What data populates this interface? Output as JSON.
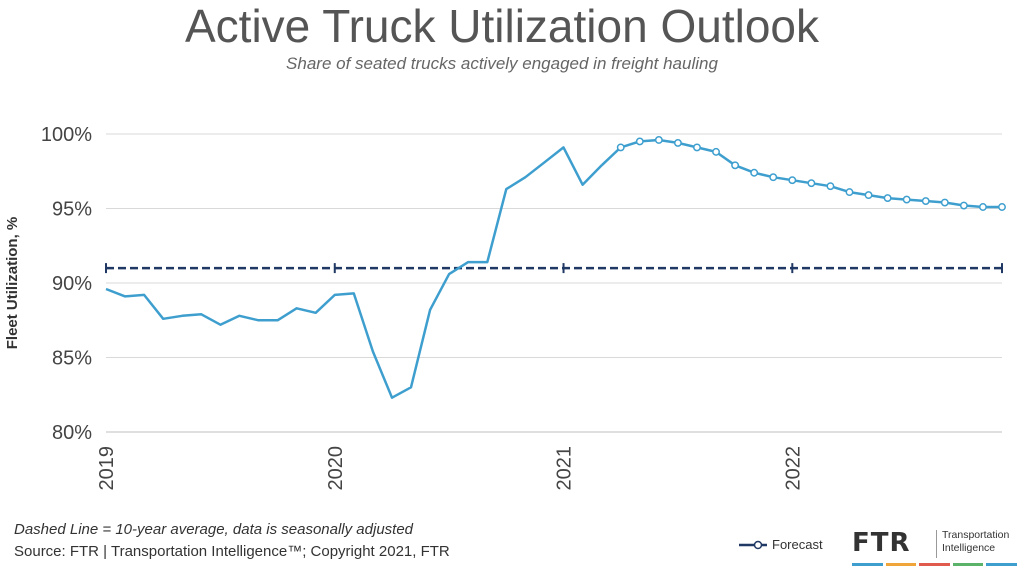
{
  "header": {
    "title": "Active Truck Utilization Outlook",
    "subtitle": "Share of seated trucks actively engaged in freight hauling"
  },
  "footer": {
    "note": "Dashed Line = 10-year average, data is seasonally adjusted",
    "source": "Source: FTR | Transportation Intelligence™; Copyright 2021, FTR"
  },
  "legend": {
    "forecast_label": "Forecast"
  },
  "logo": {
    "mark": "FTR",
    "line1": "Transportation",
    "line2": "Intelligence"
  },
  "colors": {
    "series": "#3e9fcf",
    "average": "#1f3864",
    "grid": "#d9d9d9",
    "stripe": [
      "#3e9fcf",
      "#f0a53a",
      "#e05a4e",
      "#5bb36a",
      "#3e9fcf"
    ]
  },
  "chart_data": {
    "type": "line",
    "ylabel": "Fleet Utilization, %",
    "ylim": [
      80,
      100
    ],
    "yticks": [
      80,
      85,
      90,
      95,
      100
    ],
    "ytick_labels": [
      "80%",
      "85%",
      "90%",
      "95%",
      "100%"
    ],
    "xlim": [
      "2019-01",
      "2022-12"
    ],
    "xticks": [
      "2019-01",
      "2020-01",
      "2021-01",
      "2022-01"
    ],
    "xtick_labels": [
      "2019",
      "2020",
      "2021",
      "2022"
    ],
    "grid": "horizontal",
    "legend_position": "bottom-right",
    "series": [
      {
        "x": [
          "2019-01",
          "2019-02",
          "2019-03",
          "2019-04",
          "2019-05",
          "2019-06",
          "2019-07",
          "2019-08",
          "2019-09",
          "2019-10",
          "2019-11",
          "2019-12",
          "2020-01",
          "2020-02",
          "2020-03",
          "2020-04",
          "2020-05",
          "2020-06",
          "2020-07",
          "2020-08",
          "2020-09",
          "2020-10",
          "2020-11",
          "2020-12",
          "2021-01",
          "2021-02",
          "2021-03"
        ],
        "y": [
          89.6,
          89.1,
          89.2,
          87.6,
          87.8,
          87.9,
          87.2,
          87.8,
          87.5,
          87.5,
          88.3,
          88.0,
          89.2,
          89.3,
          85.4,
          82.3,
          83.0,
          88.2,
          90.6,
          91.4,
          91.4,
          96.3,
          97.1,
          98.1,
          99.1,
          96.6,
          97.9
        ]
      },
      {
        "name": "Forecast",
        "marker": "open-circle",
        "x": [
          "2021-03",
          "2021-04",
          "2021-05",
          "2021-06",
          "2021-07",
          "2021-08",
          "2021-09",
          "2021-10",
          "2021-11",
          "2021-12",
          "2022-01",
          "2022-02",
          "2022-03",
          "2022-04",
          "2022-05",
          "2022-06",
          "2022-07",
          "2022-08",
          "2022-09",
          "2022-10",
          "2022-11",
          "2022-12"
        ],
        "y": [
          97.9,
          99.1,
          99.5,
          99.6,
          99.4,
          99.1,
          98.8,
          97.9,
          97.4,
          97.1,
          96.9,
          96.7,
          96.5,
          96.1,
          95.9,
          95.7,
          95.6,
          95.5,
          95.4,
          95.2,
          95.1,
          95.1
        ]
      }
    ],
    "reference_line": {
      "y": 91.0,
      "style": "dashed"
    }
  }
}
